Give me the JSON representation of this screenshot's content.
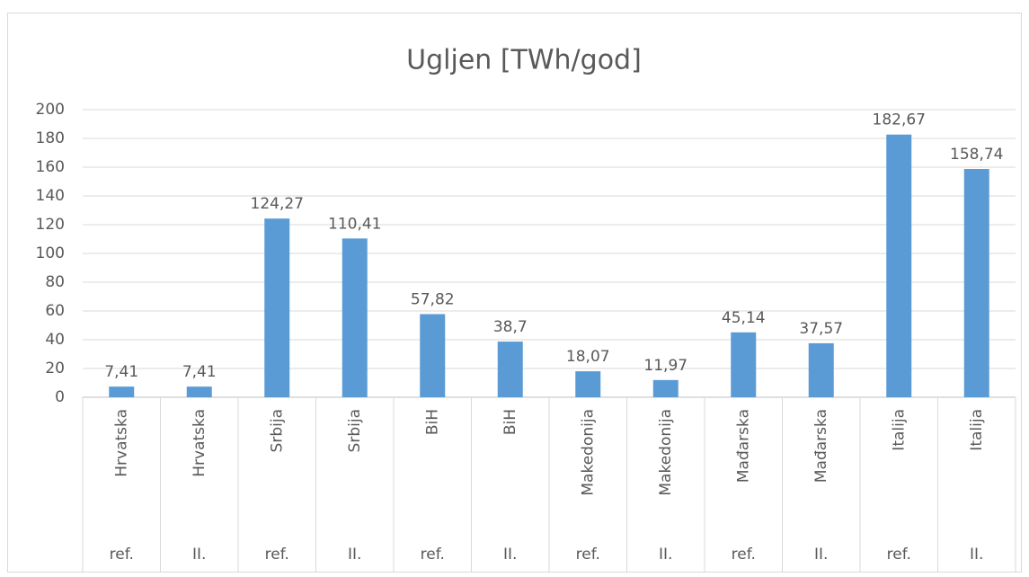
{
  "chart_data": {
    "type": "bar",
    "title": "Ugljen [TWh/god]",
    "categories": [
      "Hrvatska",
      "Hrvatska",
      "Srbija",
      "Srbija",
      "BiH",
      "BiH",
      "Makedonija",
      "Makedonija",
      "Mađarska",
      "Mađarska",
      "Italija",
      "Italija"
    ],
    "subcategories": [
      "ref.",
      "II.",
      "ref.",
      "II.",
      "ref.",
      "II.",
      "ref.",
      "II.",
      "ref.",
      "II.",
      "ref.",
      "II."
    ],
    "values": [
      7.41,
      7.41,
      124.27,
      110.41,
      57.82,
      38.7,
      18.07,
      11.97,
      45.14,
      37.57,
      182.67,
      158.74
    ],
    "value_labels": [
      "7,41",
      "7,41",
      "124,27",
      "110,41",
      "57,82",
      "38,7",
      "18,07",
      "11,97",
      "45,14",
      "37,57",
      "182,67",
      "158,74"
    ],
    "color": "#5b9bd5",
    "ylim": [
      0,
      200
    ],
    "yticks": [
      0,
      20,
      40,
      60,
      80,
      100,
      120,
      140,
      160,
      180,
      200
    ],
    "grid": true
  }
}
